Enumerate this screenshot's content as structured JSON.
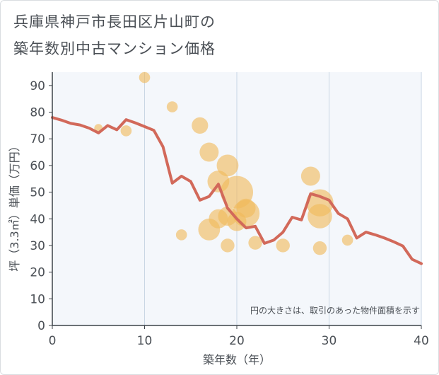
{
  "title_line1": "兵庫県神戸市長田区片山町の",
  "title_line2": "築年数別中古マンション価格",
  "chart_data": {
    "type": "scatter",
    "title": "兵庫県神戸市長田区片山町の築年数別中古マンション価格",
    "xlabel": "築年数（年）",
    "ylabel": "坪（3.3㎡）単価（万円）",
    "xlim": [
      0,
      40
    ],
    "ylim": [
      0,
      95
    ],
    "xticks": [
      0,
      10,
      20,
      30,
      40
    ],
    "yticks": [
      0,
      10,
      20,
      30,
      40,
      50,
      60,
      70,
      80,
      90
    ],
    "grid": true,
    "note": "円の大きさは、取引のあった物件面積を示す",
    "colors": {
      "bubble": "#f0b95a",
      "line": "#d2695a",
      "grid": "#c9d6e4",
      "plot_bg": "#f4f7fb"
    },
    "bubbles": [
      {
        "x": 5,
        "y": 74,
        "s": 1
      },
      {
        "x": 8,
        "y": 73,
        "s": 2
      },
      {
        "x": 10,
        "y": 93,
        "s": 2
      },
      {
        "x": 13,
        "y": 82,
        "s": 2
      },
      {
        "x": 14,
        "y": 34,
        "s": 2
      },
      {
        "x": 16,
        "y": 75,
        "s": 4
      },
      {
        "x": 17,
        "y": 65,
        "s": 5
      },
      {
        "x": 17,
        "y": 36,
        "s": 6
      },
      {
        "x": 18,
        "y": 54,
        "s": 6
      },
      {
        "x": 18,
        "y": 40,
        "s": 5
      },
      {
        "x": 19,
        "y": 60,
        "s": 6
      },
      {
        "x": 19,
        "y": 41,
        "s": 5
      },
      {
        "x": 19,
        "y": 30,
        "s": 3
      },
      {
        "x": 20,
        "y": 50,
        "s": 10
      },
      {
        "x": 20,
        "y": 39,
        "s": 5
      },
      {
        "x": 21,
        "y": 44,
        "s": 5
      },
      {
        "x": 21,
        "y": 42,
        "s": 8
      },
      {
        "x": 22,
        "y": 31,
        "s": 3
      },
      {
        "x": 25,
        "y": 30,
        "s": 3
      },
      {
        "x": 28,
        "y": 56,
        "s": 5
      },
      {
        "x": 29,
        "y": 46,
        "s": 8
      },
      {
        "x": 29,
        "y": 41,
        "s": 7
      },
      {
        "x": 29,
        "y": 29,
        "s": 3
      },
      {
        "x": 32,
        "y": 32,
        "s": 2
      }
    ],
    "series": [
      {
        "x": [
          0,
          1,
          2,
          3,
          4,
          5,
          6,
          7,
          8,
          9,
          10,
          11,
          12,
          13,
          14,
          15,
          16,
          17,
          18,
          19,
          20,
          21,
          22,
          23,
          24,
          25,
          26,
          27,
          28,
          29,
          30,
          31,
          32,
          33,
          34,
          35,
          36,
          37,
          38,
          39,
          40
        ],
        "y": [
          78,
          77,
          75.8,
          75.2,
          74,
          72.2,
          75,
          73.4,
          77.2,
          76,
          74.6,
          73.2,
          67,
          53.4,
          56,
          54,
          47,
          48.4,
          53,
          44,
          40,
          36.6,
          37.2,
          30.8,
          32,
          35,
          40.6,
          39.6,
          49.4,
          48.4,
          47,
          42,
          40,
          32.8,
          35,
          34,
          32.8,
          31.4,
          29.8,
          24.8,
          23.2
        ]
      }
    ]
  }
}
